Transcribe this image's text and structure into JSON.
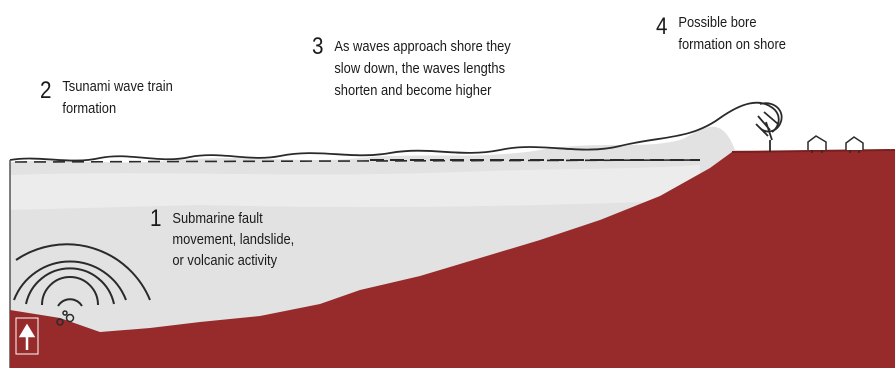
{
  "colors": {
    "seabed": "#972b2b",
    "water": "#e2e2e2",
    "line": "#2a2a2a",
    "text": "#1a1a1a"
  },
  "labels": [
    {
      "number": "1",
      "lines": [
        "Submarine fault",
        "movement, landslide,",
        "or volcanic activity"
      ]
    },
    {
      "number": "2",
      "lines": [
        "Tsunami wave train",
        "formation"
      ]
    },
    {
      "number": "3",
      "lines": [
        "As waves approach shore they",
        "slow down, the waves lengths",
        "shorten and become higher"
      ]
    },
    {
      "number": "4",
      "lines": [
        "Possible bore",
        "formation on shore"
      ]
    }
  ],
  "icons": [
    "arrow-up-icon",
    "breaking-wave-icon",
    "house-icon"
  ]
}
